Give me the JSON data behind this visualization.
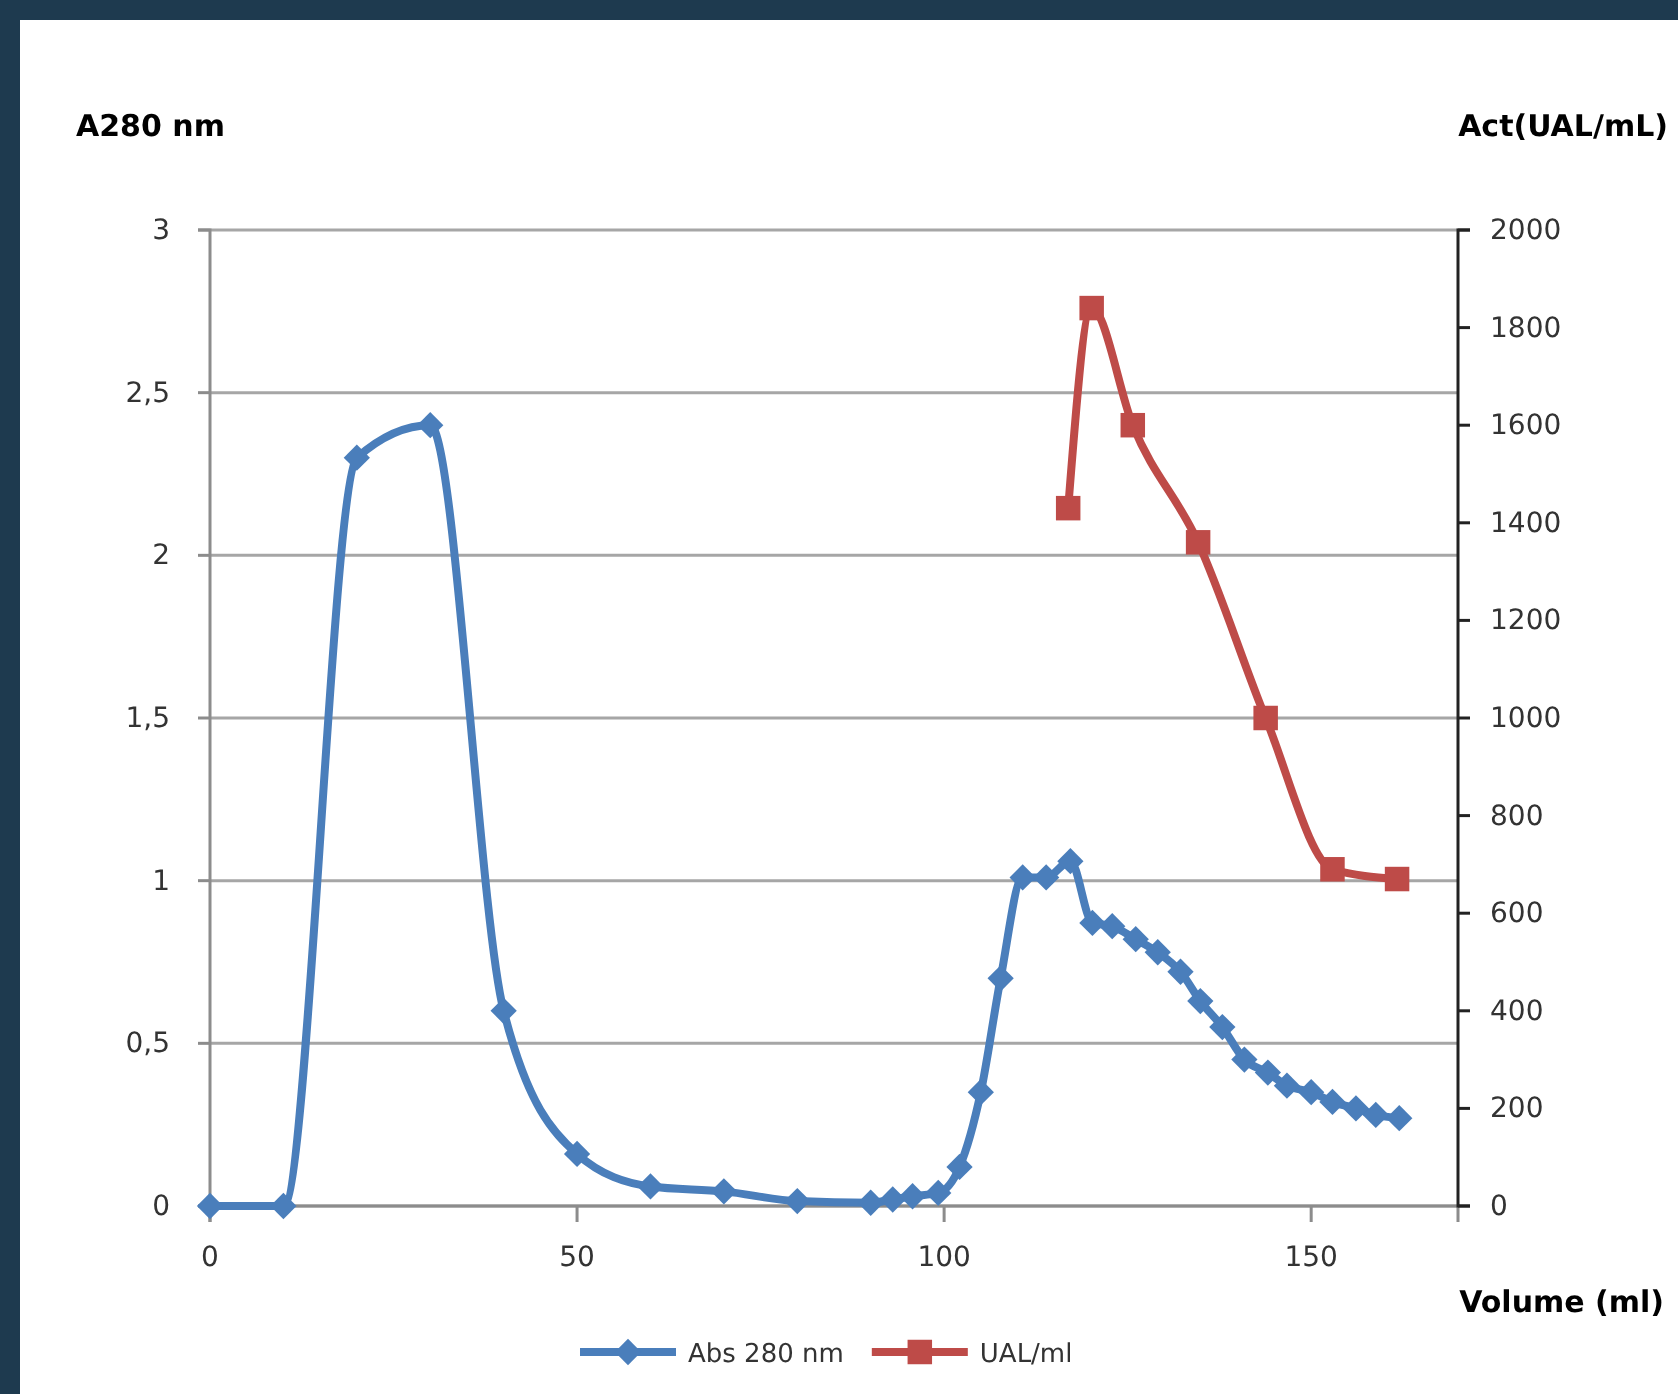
{
  "chart_data": {
    "type": "line",
    "xlabel": "Volume (ml)",
    "ylabel": "A280 nm",
    "y2label": "Act(UAL/mL)",
    "xlim": [
      0,
      170
    ],
    "xticks": [
      0,
      50,
      100,
      150
    ],
    "ylim": [
      0,
      3
    ],
    "yticks": [
      0,
      {
        "value": 0.5,
        "label": "0,5"
      },
      1,
      {
        "value": 1.5,
        "label": "1,5"
      },
      2,
      {
        "value": 2.5,
        "label": "2,5"
      },
      3
    ],
    "y2lim": [
      0,
      2000
    ],
    "y2ticks": [
      0,
      200,
      400,
      600,
      800,
      1000,
      1200,
      1400,
      1600,
      1800,
      2000
    ],
    "grid": "y",
    "legend": "bottom",
    "series": [
      {
        "name": "Abs 280 nm",
        "color": "#4a7ebb",
        "marker": "diamond",
        "x": [
          0,
          10,
          20,
          30,
          40,
          50,
          60,
          70,
          80,
          90,
          93,
          95.7,
          99.2,
          102.1,
          105,
          107.7,
          110.7,
          113.9,
          117.2,
          120.2,
          122.9,
          126.1,
          129.1,
          132.2,
          134.9,
          137.9,
          140.9,
          144.1,
          146.7,
          150,
          152.9,
          156.1,
          158.8,
          162
        ],
        "values": [
          0,
          0,
          2.3,
          2.4,
          0.6,
          0.16,
          0.06,
          0.045,
          0.015,
          0.01,
          0.02,
          0.03,
          0.04,
          0.12,
          0.35,
          0.7,
          1.01,
          1.01,
          1.06,
          0.87,
          0.86,
          0.82,
          0.78,
          0.72,
          0.63,
          0.55,
          0.45,
          0.41,
          0.37,
          0.35,
          0.32,
          0.3,
          0.28,
          0.27
        ]
      },
      {
        "name": "UAL/ml",
        "color": "#be4b48",
        "marker": "square",
        "axis": "y2",
        "x": [
          116.9,
          120.1,
          125.7,
          134.6,
          143.8,
          152.9,
          161.7
        ],
        "values": [
          1430,
          1840,
          1600,
          1360,
          1000,
          690,
          670
        ]
      }
    ]
  }
}
